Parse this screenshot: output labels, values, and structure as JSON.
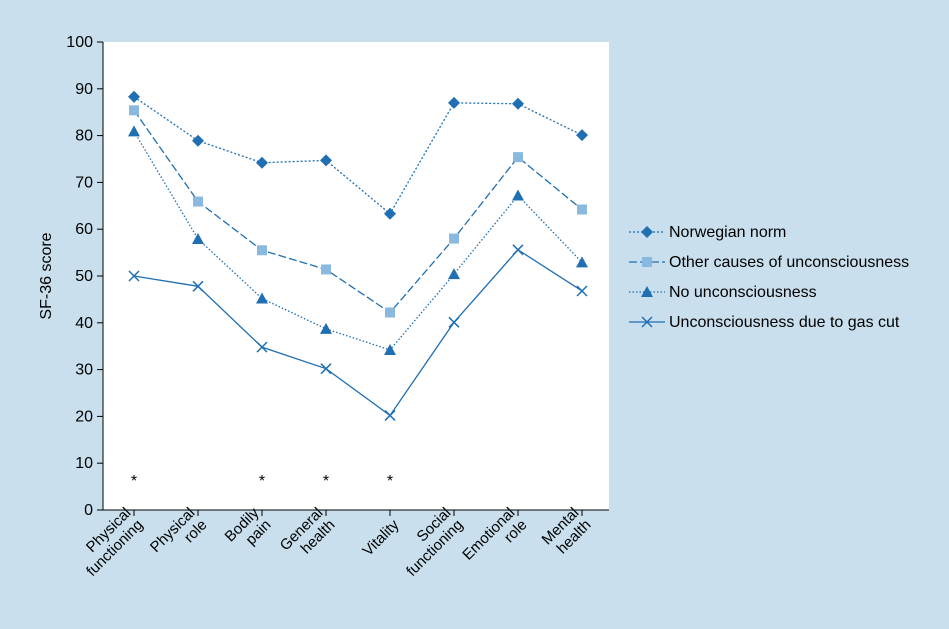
{
  "chart_data": {
    "type": "line",
    "ylabel": "SF-36 score",
    "ylim": [
      0,
      100
    ],
    "yticks": [
      0,
      10,
      20,
      30,
      40,
      50,
      60,
      70,
      80,
      90,
      100
    ],
    "categories": [
      [
        "Physical",
        "functioning"
      ],
      [
        "Physical",
        "role"
      ],
      [
        "Bodily",
        "pain"
      ],
      [
        "General",
        "health"
      ],
      [
        "Vitality"
      ],
      [
        "Social",
        "functioning"
      ],
      [
        "Emotional",
        "role"
      ],
      [
        "Mental",
        "health"
      ]
    ],
    "significance_markers": [
      "*",
      "",
      "*",
      "*",
      "*",
      "",
      "",
      ""
    ],
    "legend_position": "right",
    "series": [
      {
        "name": "Norwegian norm",
        "marker": "diamond",
        "line": "dotted-fine",
        "color": "#1f6fb2",
        "values": [
          88.3,
          78.9,
          74.2,
          74.7,
          63.3,
          87.0,
          86.8,
          80.1
        ]
      },
      {
        "name": "Other causes of unconsciousness",
        "marker": "square",
        "line": "dashed",
        "color": "#1f6fb2",
        "marker_color": "#8ab9e0",
        "values": [
          85.4,
          65.9,
          55.5,
          51.4,
          42.2,
          58.0,
          75.4,
          64.2
        ]
      },
      {
        "name": "No unconsciousness",
        "marker": "triangle",
        "line": "dotted",
        "color": "#1f6fb2",
        "values": [
          80.9,
          57.9,
          45.2,
          38.7,
          34.2,
          50.4,
          67.2,
          52.9
        ]
      },
      {
        "name": "Unconsciousness due to gas cut",
        "marker": "x",
        "line": "solid",
        "color": "#1f6fb2",
        "values": [
          50.0,
          47.8,
          34.8,
          30.2,
          20.2,
          40.1,
          55.6,
          46.8
        ]
      }
    ]
  }
}
